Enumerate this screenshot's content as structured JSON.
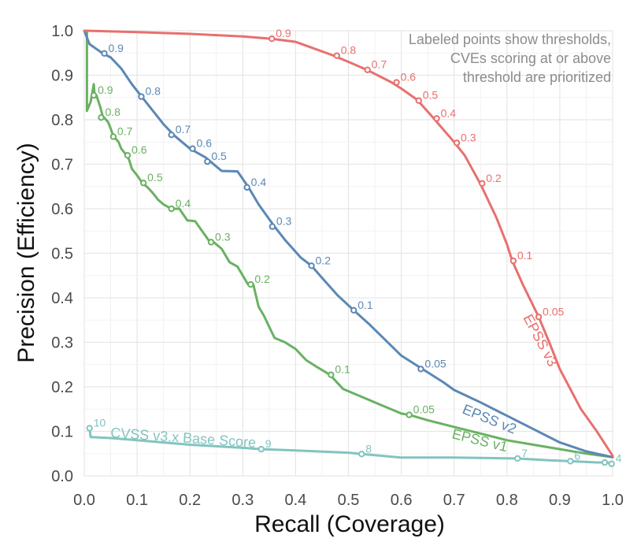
{
  "chart_data": {
    "type": "line",
    "title": "",
    "xlabel": "Recall (Coverage)",
    "ylabel": "Precision (Efficiency)",
    "xlim": [
      0,
      1
    ],
    "ylim": [
      0,
      1
    ],
    "xticks": [
      "0.0",
      "0.1",
      "0.2",
      "0.3",
      "0.4",
      "0.5",
      "0.6",
      "0.7",
      "0.8",
      "0.9",
      "1.0"
    ],
    "yticks": [
      "0.0",
      "0.1",
      "0.2",
      "0.3",
      "0.4",
      "0.5",
      "0.6",
      "0.7",
      "0.8",
      "0.9",
      "1.0"
    ],
    "grid": true,
    "annotation": [
      "Labeled points show thresholds,",
      "CVEs scoring at or above",
      "threshold are prioritized"
    ],
    "series": [
      {
        "name": "EPSS v3",
        "color": "#e8706e",
        "line": [
          [
            0.0,
            1.0
          ],
          [
            0.1,
            0.997
          ],
          [
            0.2,
            0.993
          ],
          [
            0.3,
            0.987
          ],
          [
            0.355,
            0.982
          ],
          [
            0.4,
            0.975
          ],
          [
            0.47,
            0.945
          ],
          [
            0.51,
            0.925
          ],
          [
            0.535,
            0.912
          ],
          [
            0.58,
            0.885
          ],
          [
            0.6,
            0.87
          ],
          [
            0.63,
            0.845
          ],
          [
            0.66,
            0.805
          ],
          [
            0.7,
            0.75
          ],
          [
            0.72,
            0.72
          ],
          [
            0.75,
            0.655
          ],
          [
            0.78,
            0.58
          ],
          [
            0.8,
            0.52
          ],
          [
            0.81,
            0.483
          ],
          [
            0.83,
            0.43
          ],
          [
            0.86,
            0.357
          ],
          [
            0.88,
            0.3
          ],
          [
            0.9,
            0.24
          ],
          [
            0.94,
            0.15
          ],
          [
            0.97,
            0.1
          ],
          [
            1.0,
            0.045
          ]
        ],
        "points": [
          {
            "x": 0.355,
            "y": 0.982,
            "label": "0.9"
          },
          {
            "x": 0.478,
            "y": 0.944,
            "label": "0.8"
          },
          {
            "x": 0.536,
            "y": 0.912,
            "label": "0.7"
          },
          {
            "x": 0.591,
            "y": 0.884,
            "label": "0.6"
          },
          {
            "x": 0.633,
            "y": 0.843,
            "label": "0.5"
          },
          {
            "x": 0.667,
            "y": 0.803,
            "label": "0.4"
          },
          {
            "x": 0.705,
            "y": 0.748,
            "label": "0.3"
          },
          {
            "x": 0.753,
            "y": 0.657,
            "label": "0.2"
          },
          {
            "x": 0.812,
            "y": 0.483,
            "label": "0.1"
          },
          {
            "x": 0.86,
            "y": 0.357,
            "label": "0.05"
          }
        ]
      },
      {
        "name": "EPSS v2",
        "color": "#5b88b5",
        "line": [
          [
            0.0,
            1.0
          ],
          [
            0.01,
            0.97
          ],
          [
            0.035,
            0.949
          ],
          [
            0.05,
            0.94
          ],
          [
            0.07,
            0.915
          ],
          [
            0.09,
            0.88
          ],
          [
            0.11,
            0.85
          ],
          [
            0.13,
            0.82
          ],
          [
            0.15,
            0.79
          ],
          [
            0.17,
            0.765
          ],
          [
            0.2,
            0.735
          ],
          [
            0.23,
            0.715
          ],
          [
            0.24,
            0.705
          ],
          [
            0.26,
            0.685
          ],
          [
            0.29,
            0.684
          ],
          [
            0.31,
            0.65
          ],
          [
            0.33,
            0.61
          ],
          [
            0.36,
            0.56
          ],
          [
            0.38,
            0.53
          ],
          [
            0.41,
            0.49
          ],
          [
            0.43,
            0.472
          ],
          [
            0.45,
            0.445
          ],
          [
            0.48,
            0.405
          ],
          [
            0.51,
            0.372
          ],
          [
            0.54,
            0.34
          ],
          [
            0.57,
            0.305
          ],
          [
            0.6,
            0.27
          ],
          [
            0.64,
            0.24
          ],
          [
            0.68,
            0.21
          ],
          [
            0.7,
            0.193
          ],
          [
            0.75,
            0.165
          ],
          [
            0.8,
            0.135
          ],
          [
            0.85,
            0.105
          ],
          [
            0.9,
            0.075
          ],
          [
            0.95,
            0.055
          ],
          [
            1.0,
            0.042
          ]
        ],
        "points": [
          {
            "x": 0.038,
            "y": 0.949,
            "label": "0.9"
          },
          {
            "x": 0.108,
            "y": 0.852,
            "label": "0.8"
          },
          {
            "x": 0.165,
            "y": 0.766,
            "label": "0.7"
          },
          {
            "x": 0.205,
            "y": 0.735,
            "label": "0.6"
          },
          {
            "x": 0.233,
            "y": 0.706,
            "label": "0.5"
          },
          {
            "x": 0.308,
            "y": 0.648,
            "label": "0.4"
          },
          {
            "x": 0.356,
            "y": 0.56,
            "label": "0.3"
          },
          {
            "x": 0.43,
            "y": 0.472,
            "label": "0.2"
          },
          {
            "x": 0.51,
            "y": 0.372,
            "label": "0.1"
          },
          {
            "x": 0.637,
            "y": 0.24,
            "label": "0.05"
          }
        ]
      },
      {
        "name": "EPSS v1",
        "color": "#6ab163",
        "line": [
          [
            0.005,
            1.0
          ],
          [
            0.005,
            0.82
          ],
          [
            0.012,
            0.84
          ],
          [
            0.015,
            0.86
          ],
          [
            0.018,
            0.88
          ],
          [
            0.02,
            0.85
          ],
          [
            0.023,
            0.855
          ],
          [
            0.03,
            0.83
          ],
          [
            0.035,
            0.808
          ],
          [
            0.045,
            0.795
          ],
          [
            0.05,
            0.78
          ],
          [
            0.055,
            0.763
          ],
          [
            0.065,
            0.75
          ],
          [
            0.07,
            0.735
          ],
          [
            0.08,
            0.72
          ],
          [
            0.085,
            0.71
          ],
          [
            0.09,
            0.69
          ],
          [
            0.1,
            0.675
          ],
          [
            0.11,
            0.658
          ],
          [
            0.12,
            0.648
          ],
          [
            0.13,
            0.635
          ],
          [
            0.14,
            0.62
          ],
          [
            0.15,
            0.61
          ],
          [
            0.165,
            0.6
          ],
          [
            0.18,
            0.6
          ],
          [
            0.195,
            0.574
          ],
          [
            0.21,
            0.572
          ],
          [
            0.22,
            0.555
          ],
          [
            0.235,
            0.53
          ],
          [
            0.245,
            0.525
          ],
          [
            0.26,
            0.51
          ],
          [
            0.275,
            0.48
          ],
          [
            0.29,
            0.47
          ],
          [
            0.3,
            0.45
          ],
          [
            0.31,
            0.43
          ],
          [
            0.32,
            0.43
          ],
          [
            0.33,
            0.38
          ],
          [
            0.34,
            0.36
          ],
          [
            0.36,
            0.31
          ],
          [
            0.38,
            0.3
          ],
          [
            0.4,
            0.285
          ],
          [
            0.42,
            0.26
          ],
          [
            0.44,
            0.245
          ],
          [
            0.465,
            0.227
          ],
          [
            0.49,
            0.195
          ],
          [
            0.52,
            0.18
          ],
          [
            0.56,
            0.16
          ],
          [
            0.6,
            0.14
          ],
          [
            0.615,
            0.137
          ],
          [
            0.65,
            0.125
          ],
          [
            0.7,
            0.11
          ],
          [
            0.75,
            0.095
          ],
          [
            0.8,
            0.08
          ],
          [
            0.85,
            0.07
          ],
          [
            0.9,
            0.06
          ],
          [
            0.95,
            0.05
          ],
          [
            1.0,
            0.042
          ]
        ],
        "points": [
          {
            "x": 0.018,
            "y": 0.855,
            "label": "0.9"
          },
          {
            "x": 0.032,
            "y": 0.805,
            "label": "0.8"
          },
          {
            "x": 0.055,
            "y": 0.762,
            "label": "0.7"
          },
          {
            "x": 0.082,
            "y": 0.72,
            "label": "0.6"
          },
          {
            "x": 0.112,
            "y": 0.658,
            "label": "0.5"
          },
          {
            "x": 0.165,
            "y": 0.6,
            "label": "0.4"
          },
          {
            "x": 0.24,
            "y": 0.525,
            "label": "0.3"
          },
          {
            "x": 0.315,
            "y": 0.43,
            "label": "0.2"
          },
          {
            "x": 0.467,
            "y": 0.227,
            "label": "0.1"
          },
          {
            "x": 0.615,
            "y": 0.137,
            "label": "0.05"
          }
        ]
      },
      {
        "name": "CVSS v3.x Base Score",
        "color": "#82c4bf",
        "line": [
          [
            0.01,
            0.107
          ],
          [
            0.012,
            0.087
          ],
          [
            0.05,
            0.085
          ],
          [
            0.1,
            0.08
          ],
          [
            0.2,
            0.07
          ],
          [
            0.3,
            0.063
          ],
          [
            0.335,
            0.06
          ],
          [
            0.4,
            0.057
          ],
          [
            0.5,
            0.052
          ],
          [
            0.525,
            0.049
          ],
          [
            0.6,
            0.041
          ],
          [
            0.7,
            0.041
          ],
          [
            0.82,
            0.039
          ],
          [
            0.88,
            0.035
          ],
          [
            0.92,
            0.033
          ],
          [
            0.97,
            0.03
          ],
          [
            0.99,
            0.03
          ],
          [
            1.0,
            0.027
          ]
        ],
        "points": [
          {
            "x": 0.01,
            "y": 0.107,
            "label": "10"
          },
          {
            "x": 0.335,
            "y": 0.06,
            "label": "9"
          },
          {
            "x": 0.525,
            "y": 0.049,
            "label": "8"
          },
          {
            "x": 0.82,
            "y": 0.039,
            "label": "7"
          },
          {
            "x": 0.92,
            "y": 0.033,
            "label": "6"
          },
          {
            "x": 0.985,
            "y": 0.03,
            "label": ""
          },
          {
            "x": 0.998,
            "y": 0.027,
            "label": "4"
          }
        ]
      }
    ]
  }
}
